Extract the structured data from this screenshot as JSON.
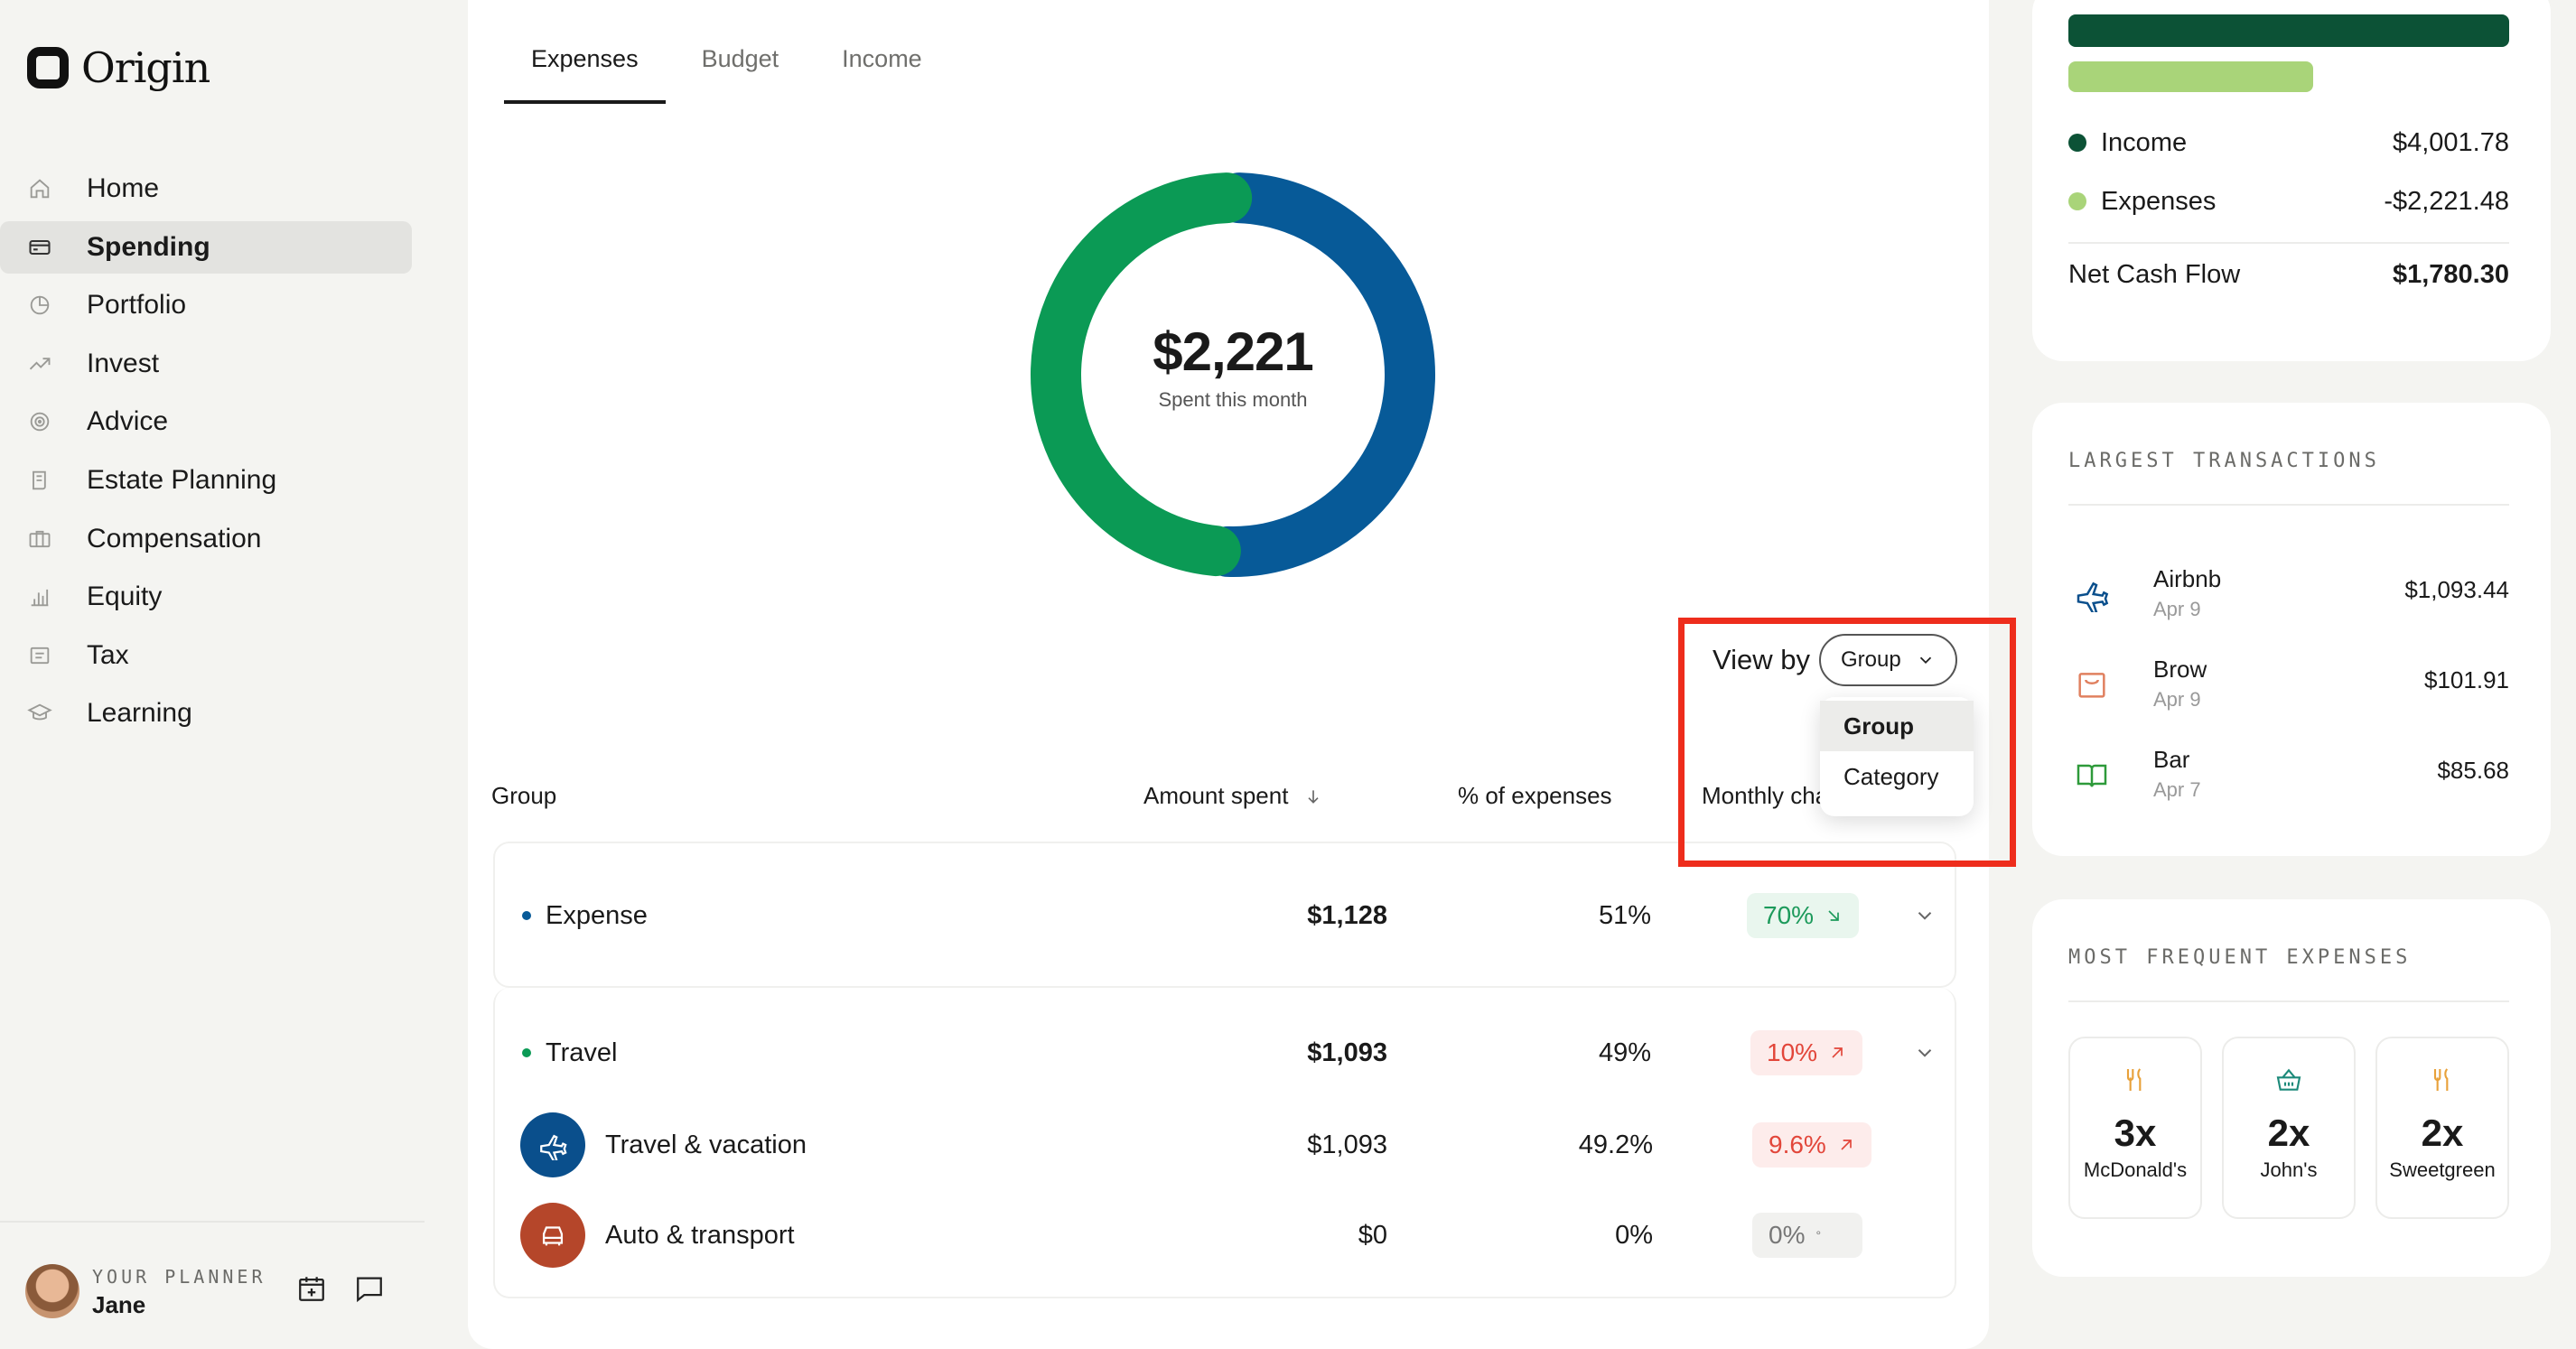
{
  "brand": {
    "name": "Origin"
  },
  "nav": [
    {
      "label": "Home",
      "icon": "home-icon"
    },
    {
      "label": "Spending",
      "icon": "card-icon",
      "active": true
    },
    {
      "label": "Portfolio",
      "icon": "pie-icon"
    },
    {
      "label": "Invest",
      "icon": "trend-icon"
    },
    {
      "label": "Advice",
      "icon": "target-icon"
    },
    {
      "label": "Estate Planning",
      "icon": "scroll-icon"
    },
    {
      "label": "Compensation",
      "icon": "briefcase-icon"
    },
    {
      "label": "Equity",
      "icon": "bar-chart-icon"
    },
    {
      "label": "Tax",
      "icon": "receipt-icon"
    },
    {
      "label": "Learning",
      "icon": "graduation-cap-icon"
    }
  ],
  "planner": {
    "label": "YOUR PLANNER",
    "name": "Jane"
  },
  "tabs": [
    "Expenses",
    "Budget",
    "Income"
  ],
  "donut": {
    "amount": "$2,221",
    "subtitle": "Spent this month",
    "segments": [
      {
        "name": "Travel",
        "share": 0.49,
        "color": "#0b9a55"
      },
      {
        "name": "Expense",
        "share": 0.51,
        "color": "#075a98"
      }
    ]
  },
  "view_by": {
    "label": "View by",
    "selected": "Group",
    "options": [
      "Group",
      "Category"
    ]
  },
  "table": {
    "headers": {
      "group": "Group",
      "amount": "Amount spent",
      "percent": "% of expenses",
      "monthly": "Monthly char"
    },
    "groups": [
      {
        "name": "Expense",
        "dot_color": "#075a98",
        "amount": "$1,128",
        "percent": "51%",
        "change": "70%",
        "change_dir": "down",
        "tone": "green"
      },
      {
        "name": "Travel",
        "dot_color": "#0b9a55",
        "amount": "$1,093",
        "percent": "49%",
        "change": "10%",
        "change_dir": "up",
        "tone": "red",
        "children": [
          {
            "name": "Travel & vacation",
            "icon": "airplane-icon",
            "icon_bg": "#0a4f8c",
            "amount": "$1,093",
            "percent": "49.2%",
            "change": "9.6%",
            "change_dir": "up",
            "tone": "red"
          },
          {
            "name": "Auto & transport",
            "icon": "car-icon",
            "icon_bg": "#b5462a",
            "amount": "$0",
            "percent": "0%",
            "change": "0%",
            "change_dir": "flat",
            "tone": "grey"
          }
        ]
      }
    ]
  },
  "cashflow": {
    "income_share": 1.0,
    "expense_share": 0.555,
    "income": {
      "label": "Income",
      "value": "$4,001.78",
      "color": "#0c5236"
    },
    "expenses": {
      "label": "Expenses",
      "value": "-$2,221.48",
      "color": "#a9d479"
    },
    "net": {
      "label": "Net Cash Flow",
      "value": "$1,780.30"
    }
  },
  "largest": {
    "title": "LARGEST TRANSACTIONS",
    "items": [
      {
        "name": "Airbnb",
        "date": "Apr 9",
        "amount": "$1,093.44",
        "icon": "airplane-icon"
      },
      {
        "name": "Brow",
        "date": "Apr 9",
        "amount": "$101.91",
        "icon": "shopping-bag-icon"
      },
      {
        "name": "Bar",
        "date": "Apr 7",
        "amount": "$85.68",
        "icon": "book-icon"
      }
    ]
  },
  "frequent": {
    "title": "MOST FREQUENT EXPENSES",
    "items": [
      {
        "count": "3x",
        "name": "McDonald's",
        "icon": "fork-knife-icon"
      },
      {
        "count": "2x",
        "name": "John's",
        "icon": "basket-icon"
      },
      {
        "count": "2x",
        "name": "Sweetgreen",
        "icon": "fork-knife-icon"
      }
    ]
  }
}
